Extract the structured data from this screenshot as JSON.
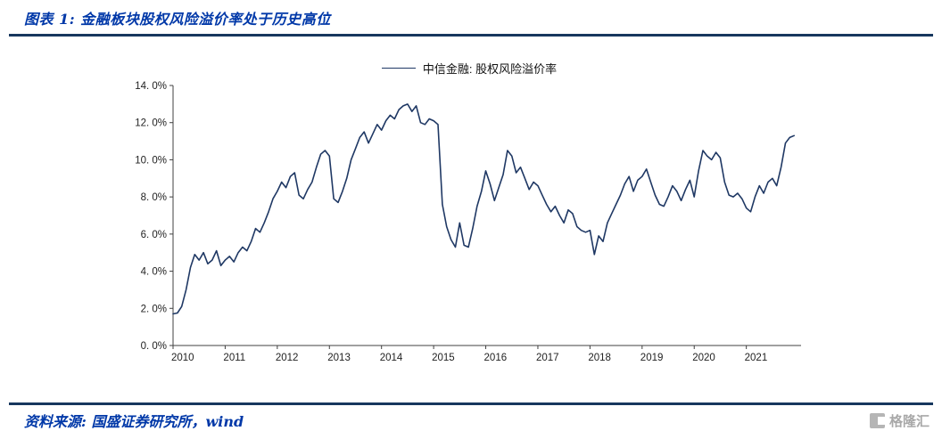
{
  "page": {
    "figure_label": "图表 1:",
    "title": "金融板块股权风险溢价率处于历史高位",
    "source": "资料来源: 国盛证券研究所，wind",
    "watermark": "格隆汇",
    "colors": {
      "accent": "#0038A8",
      "rule": "#17375E",
      "line": "#1F3864",
      "axis": "#404040"
    }
  },
  "chart_data": {
    "type": "line",
    "title": "",
    "xlabel": "",
    "ylabel": "",
    "grid": false,
    "legend_position": "top",
    "legend": [
      "中信金融: 股权风险溢价率"
    ],
    "x_start": 2010,
    "x_end": 2022.05,
    "x_ticks": [
      2010,
      2011,
      2012,
      2013,
      2014,
      2015,
      2016,
      2017,
      2018,
      2019,
      2020,
      2021
    ],
    "ylim": [
      0,
      14
    ],
    "yticks": [
      {
        "value": 0,
        "label": "0. 0%"
      },
      {
        "value": 2,
        "label": "2. 0%"
      },
      {
        "value": 4,
        "label": "4. 0%"
      },
      {
        "value": 6,
        "label": "6. 0%"
      },
      {
        "value": 8,
        "label": "8. 0%"
      },
      {
        "value": 10,
        "label": "10. 0%"
      },
      {
        "value": 12,
        "label": "12. 0%"
      },
      {
        "value": 14,
        "label": "14. 0%"
      }
    ],
    "series": [
      {
        "name": "中信金融: 股权风险溢价率",
        "unit": "percent",
        "frequency": "monthly",
        "start": "2010-01",
        "values": [
          1.7,
          1.75,
          2.1,
          3.0,
          4.2,
          4.9,
          4.6,
          5.0,
          4.4,
          4.6,
          5.1,
          4.3,
          4.6,
          4.8,
          4.5,
          5.0,
          5.3,
          5.1,
          5.6,
          6.3,
          6.1,
          6.6,
          7.2,
          7.9,
          8.3,
          8.8,
          8.5,
          9.1,
          9.3,
          8.1,
          7.9,
          8.4,
          8.8,
          9.6,
          10.3,
          10.5,
          10.2,
          7.9,
          7.7,
          8.3,
          9.0,
          10.0,
          10.6,
          11.2,
          11.5,
          10.9,
          11.4,
          11.9,
          11.6,
          12.1,
          12.4,
          12.2,
          12.7,
          12.9,
          13.0,
          12.6,
          12.9,
          12.0,
          11.9,
          12.2,
          12.1,
          11.9,
          7.6,
          6.4,
          5.7,
          5.3,
          6.6,
          5.4,
          5.3,
          6.3,
          7.5,
          8.3,
          9.4,
          8.7,
          7.8,
          8.5,
          9.2,
          10.5,
          10.2,
          9.3,
          9.6,
          9.0,
          8.4,
          8.8,
          8.6,
          8.1,
          7.6,
          7.2,
          7.5,
          7.0,
          6.6,
          7.3,
          7.1,
          6.4,
          6.2,
          6.1,
          6.2,
          4.9,
          5.9,
          5.6,
          6.6,
          7.1,
          7.6,
          8.1,
          8.7,
          9.1,
          8.3,
          8.9,
          9.1,
          9.5,
          8.8,
          8.1,
          7.6,
          7.5,
          8.0,
          8.6,
          8.3,
          7.8,
          8.4,
          8.9,
          8.0,
          9.4,
          10.5,
          10.2,
          10.0,
          10.4,
          10.1,
          8.8,
          8.1,
          8.0,
          8.2,
          7.9,
          7.4,
          7.2,
          8.0,
          8.6,
          8.2,
          8.8,
          9.0,
          8.6,
          9.6,
          10.9,
          11.2,
          11.3
        ]
      }
    ]
  }
}
